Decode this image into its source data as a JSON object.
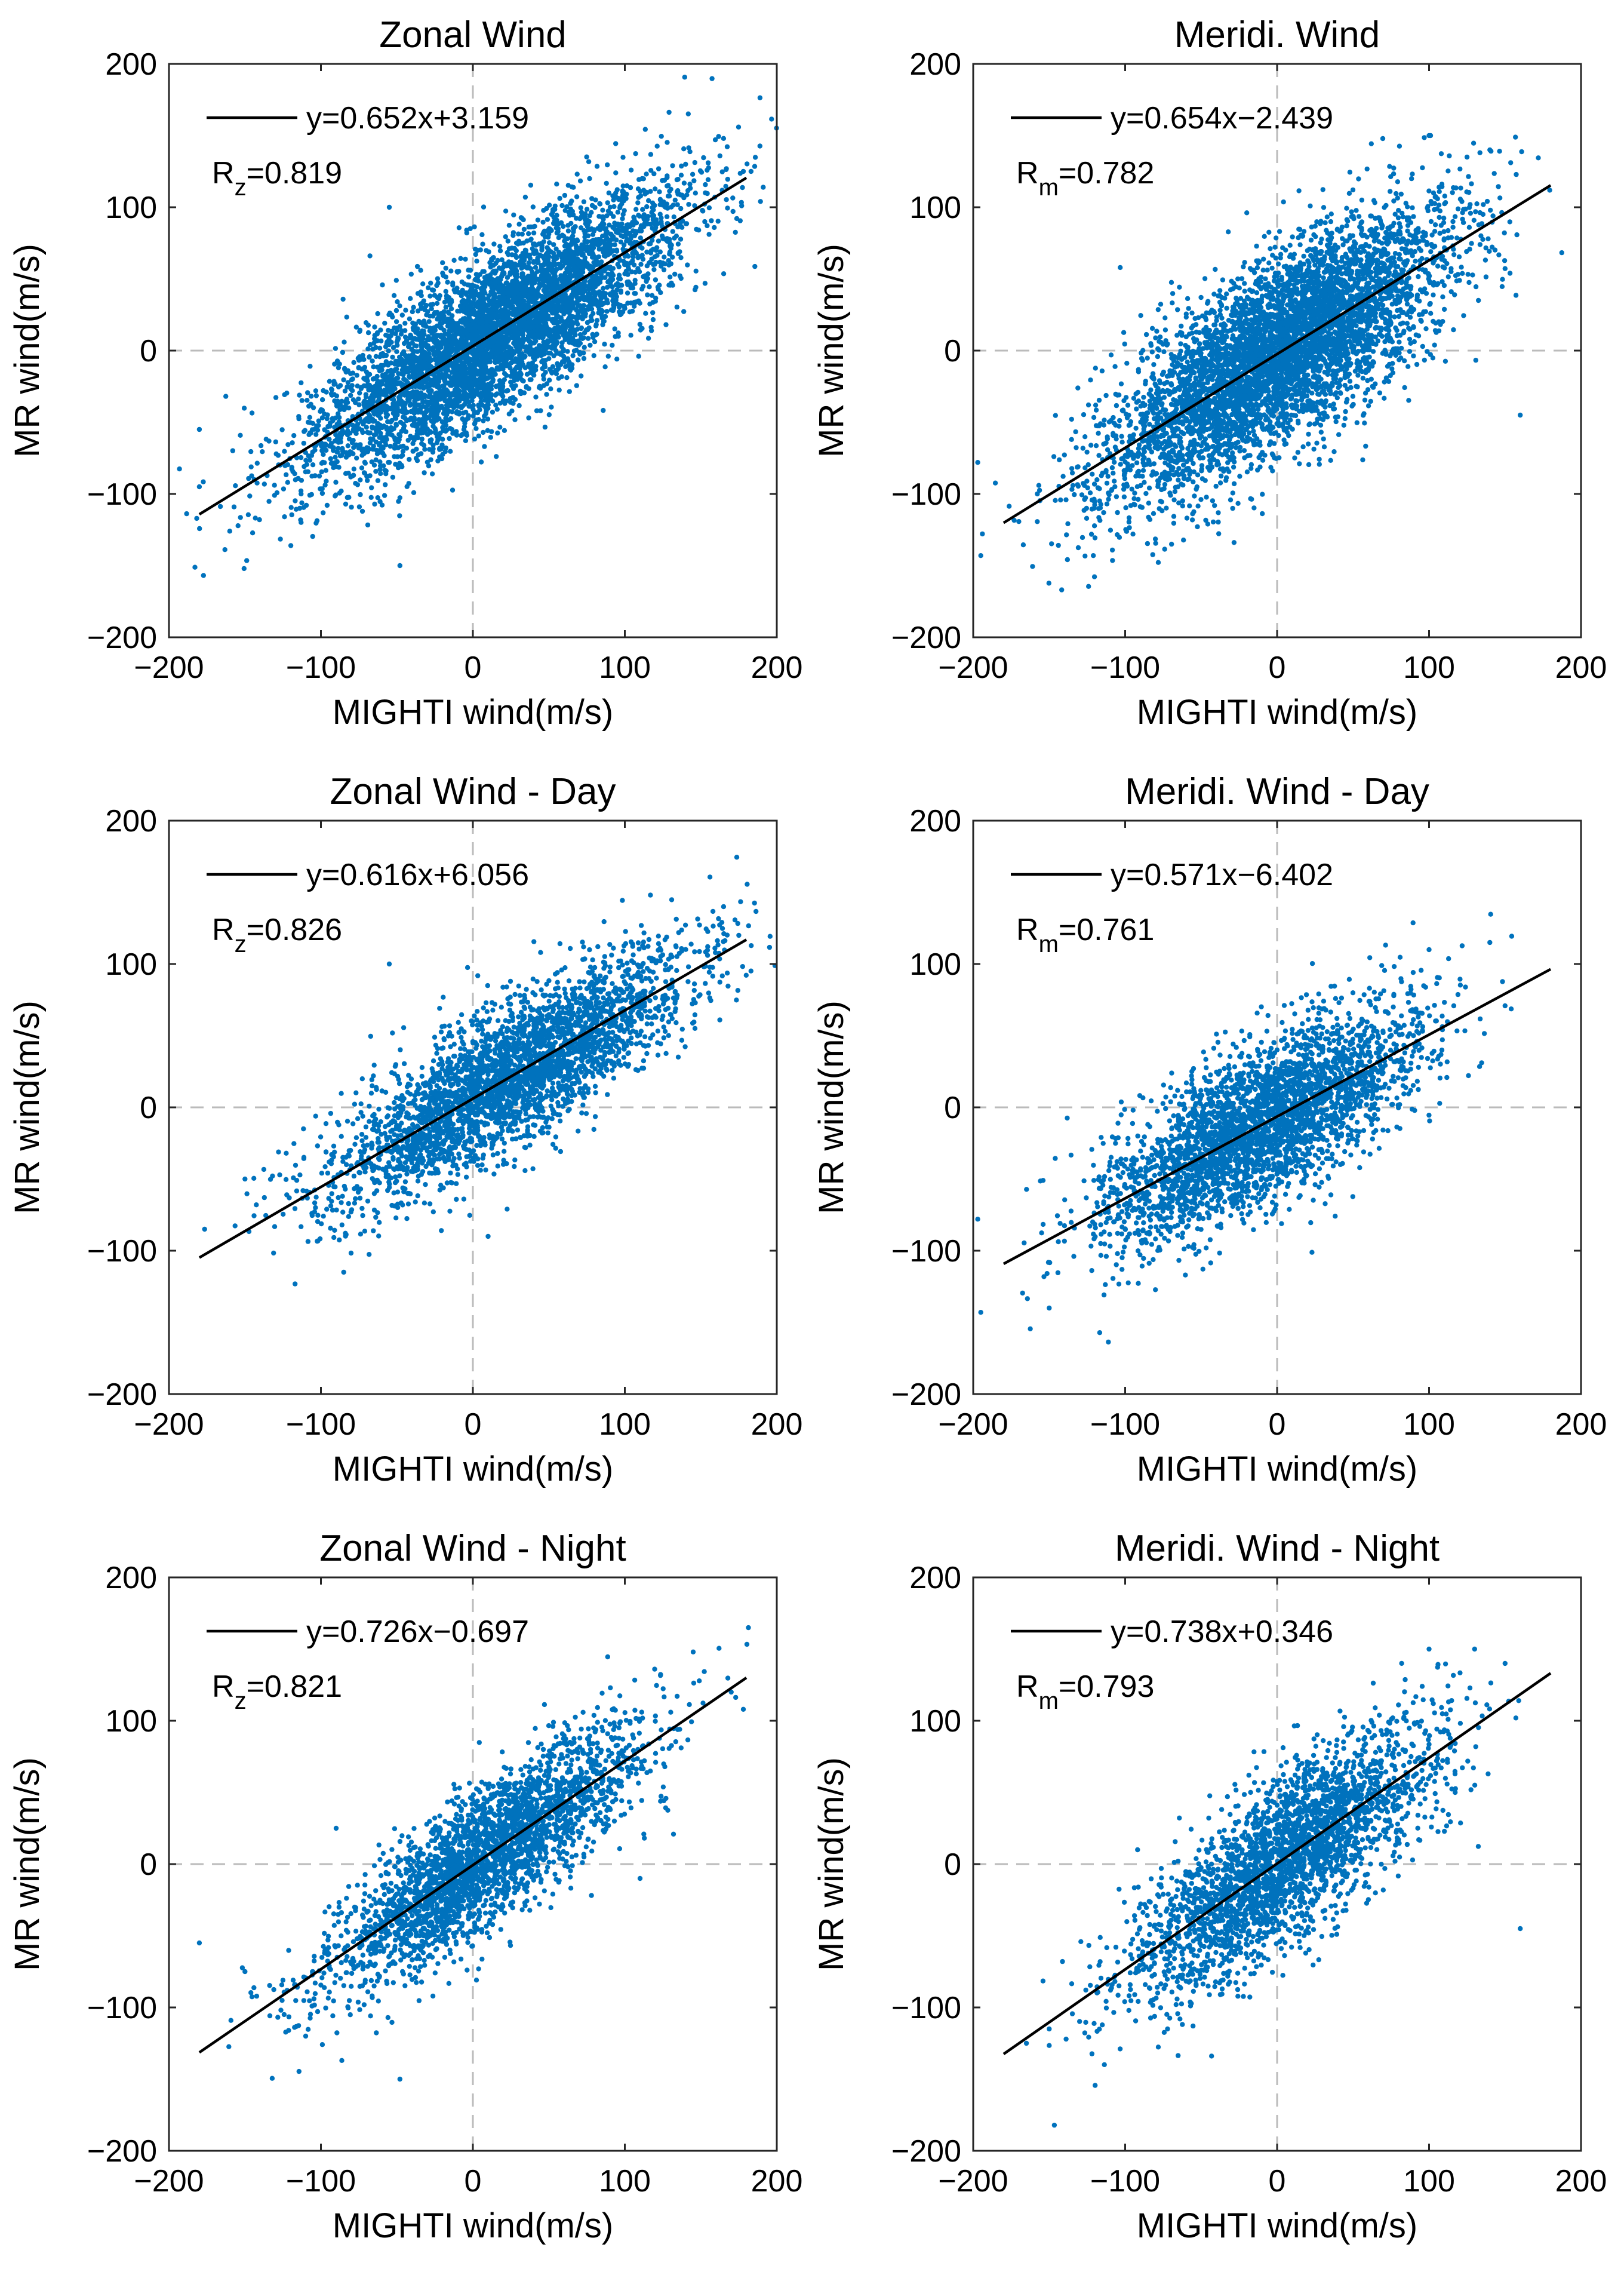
{
  "figure": {
    "colors": {
      "points": "#0072BD",
      "fit_line": "#000000",
      "zero_lines": "#bbbbbb",
      "axes": "#262626"
    }
  },
  "chart_data": [
    {
      "type": "scatter",
      "title": "Zonal Wind",
      "xlabel": "MIGHTI wind(m/s)",
      "ylabel": "MR wind(m/s)",
      "xlim": [
        -200,
        200
      ],
      "ylim": [
        -200,
        200
      ],
      "xticks": [
        -200,
        -100,
        0,
        100,
        200
      ],
      "yticks": [
        -200,
        -100,
        0,
        100,
        200
      ],
      "xtick_labels": [
        "−200",
        "−100",
        "0",
        "100",
        "200"
      ],
      "ytick_labels": [
        "−200",
        "−100",
        "0",
        "100",
        "200"
      ],
      "fit": {
        "slope": 0.652,
        "intercept": 3.159,
        "x_range": [
          -180,
          180
        ]
      },
      "equation": "y=0.652x+3.159",
      "r_prefix": "R",
      "r_sub": "z",
      "r_value": "=0.819",
      "scatter": {
        "count": 5200,
        "x_mean": 15,
        "x_sd": 60,
        "resid_sd": 28,
        "seed": 11
      },
      "outliers": [
        [
          -48,
          -150
        ],
        [
          -55,
          100
        ],
        [
          -180,
          -55
        ],
        [
          -180,
          -95
        ],
        [
          140,
          130
        ],
        [
          165,
          148
        ],
        [
          178,
          125
        ]
      ]
    },
    {
      "type": "scatter",
      "title": "Meridi. Wind",
      "xlabel": "MIGHTI wind(m/s)",
      "ylabel": "MR wind(m/s)",
      "xlim": [
        -200,
        200
      ],
      "ylim": [
        -200,
        200
      ],
      "xticks": [
        -200,
        -100,
        0,
        100,
        200
      ],
      "yticks": [
        -200,
        -100,
        0,
        100,
        200
      ],
      "xtick_labels": [
        "−200",
        "−100",
        "0",
        "100",
        "200"
      ],
      "ytick_labels": [
        "−200",
        "−100",
        "0",
        "100",
        "200"
      ],
      "fit": {
        "slope": 0.654,
        "intercept": -2.439,
        "x_range": [
          -180,
          180
        ]
      },
      "equation": "y=0.654x−2.439",
      "r_prefix": "R",
      "r_sub": "m",
      "r_value": "=0.782",
      "scatter": {
        "count": 5200,
        "x_mean": 0,
        "x_sd": 55,
        "resid_sd": 32,
        "seed": 23
      },
      "outliers": [
        [
          -195,
          -143
        ],
        [
          -197,
          -78
        ],
        [
          160,
          -45
        ],
        [
          100,
          150
        ],
        [
          140,
          140
        ],
        [
          125,
          135
        ]
      ]
    },
    {
      "type": "scatter",
      "title": "Zonal Wind - Day",
      "xlabel": "MIGHTI wind(m/s)",
      "ylabel": "MR wind(m/s)",
      "xlim": [
        -200,
        200
      ],
      "ylim": [
        -200,
        200
      ],
      "xticks": [
        -200,
        -100,
        0,
        100,
        200
      ],
      "yticks": [
        -200,
        -100,
        0,
        100,
        200
      ],
      "xtick_labels": [
        "−200",
        "−100",
        "0",
        "100",
        "200"
      ],
      "ytick_labels": [
        "−200",
        "−100",
        "0",
        "100",
        "200"
      ],
      "fit": {
        "slope": 0.616,
        "intercept": 6.056,
        "x_range": [
          -180,
          180
        ]
      },
      "equation": "y=0.616x+6.056",
      "r_prefix": "R",
      "r_sub": "z",
      "r_value": "=0.826",
      "scatter": {
        "count": 3200,
        "x_mean": 25,
        "x_sd": 60,
        "resid_sd": 25,
        "seed": 37
      },
      "outliers": [
        [
          -55,
          100
        ],
        [
          10,
          -90
        ],
        [
          -150,
          -50
        ],
        [
          165,
          140
        ],
        [
          175,
          120
        ],
        [
          -85,
          -115
        ]
      ]
    },
    {
      "type": "scatter",
      "title": "Meridi. Wind - Day",
      "xlabel": "MIGHTI wind(m/s)",
      "ylabel": "MR wind(m/s)",
      "xlim": [
        -200,
        200
      ],
      "ylim": [
        -200,
        200
      ],
      "xticks": [
        -200,
        -100,
        0,
        100,
        200
      ],
      "yticks": [
        -200,
        -100,
        0,
        100,
        200
      ],
      "xtick_labels": [
        "−200",
        "−100",
        "0",
        "100",
        "200"
      ],
      "ytick_labels": [
        "−200",
        "−100",
        "0",
        "100",
        "200"
      ],
      "fit": {
        "slope": 0.571,
        "intercept": -6.402,
        "x_range": [
          -180,
          180
        ]
      },
      "equation": "y=0.571x−6.402",
      "r_prefix": "R",
      "r_sub": "m",
      "r_value": "=0.761",
      "scatter": {
        "count": 3200,
        "x_mean": -10,
        "x_sd": 50,
        "resid_sd": 28,
        "seed": 41
      },
      "outliers": [
        [
          -195,
          -143
        ],
        [
          -197,
          -78
        ],
        [
          100,
          110
        ],
        [
          140,
          115
        ],
        [
          -150,
          -140
        ]
      ]
    },
    {
      "type": "scatter",
      "title": "Zonal Wind - Night",
      "xlabel": "MIGHTI wind(m/s)",
      "ylabel": "MR wind(m/s)",
      "xlim": [
        -200,
        200
      ],
      "ylim": [
        -200,
        200
      ],
      "xticks": [
        -200,
        -100,
        0,
        100,
        200
      ],
      "yticks": [
        -200,
        -100,
        0,
        100,
        200
      ],
      "xtick_labels": [
        "−200",
        "−100",
        "0",
        "100",
        "200"
      ],
      "ytick_labels": [
        "−200",
        "−100",
        "0",
        "100",
        "200"
      ],
      "fit": {
        "slope": 0.726,
        "intercept": -0.697,
        "x_range": [
          -180,
          180
        ]
      },
      "equation": "y=0.726x−0.697",
      "r_prefix": "R",
      "r_sub": "z",
      "r_value": "=0.821",
      "scatter": {
        "count": 2800,
        "x_mean": 10,
        "x_sd": 50,
        "resid_sd": 24,
        "seed": 53
      },
      "outliers": [
        [
          -48,
          -150
        ],
        [
          -180,
          -55
        ],
        [
          -150,
          -75
        ],
        [
          -110,
          -120
        ],
        [
          145,
          148
        ],
        [
          170,
          120
        ],
        [
          178,
          108
        ],
        [
          -90,
          25
        ],
        [
          110,
          -10
        ]
      ]
    },
    {
      "type": "scatter",
      "title": "Meridi. Wind - Night",
      "xlabel": "MIGHTI wind(m/s)",
      "ylabel": "MR wind(m/s)",
      "xlim": [
        -200,
        200
      ],
      "ylim": [
        -200,
        200
      ],
      "xticks": [
        -200,
        -100,
        0,
        100,
        200
      ],
      "yticks": [
        -200,
        -100,
        0,
        100,
        200
      ],
      "xtick_labels": [
        "−200",
        "−100",
        "0",
        "100",
        "200"
      ],
      "ytick_labels": [
        "−200",
        "−100",
        "0",
        "100",
        "200"
      ],
      "fit": {
        "slope": 0.738,
        "intercept": 0.346,
        "x_range": [
          -180,
          180
        ]
      },
      "equation": "y=0.738x+0.346",
      "r_prefix": "R",
      "r_sub": "m",
      "r_value": "=0.793",
      "scatter": {
        "count": 2800,
        "x_mean": 5,
        "x_sd": 50,
        "resid_sd": 28,
        "seed": 67
      },
      "outliers": [
        [
          160,
          -45
        ],
        [
          100,
          150
        ],
        [
          130,
          150
        ],
        [
          150,
          140
        ],
        [
          -165,
          -125
        ],
        [
          -150,
          -115
        ]
      ]
    }
  ]
}
